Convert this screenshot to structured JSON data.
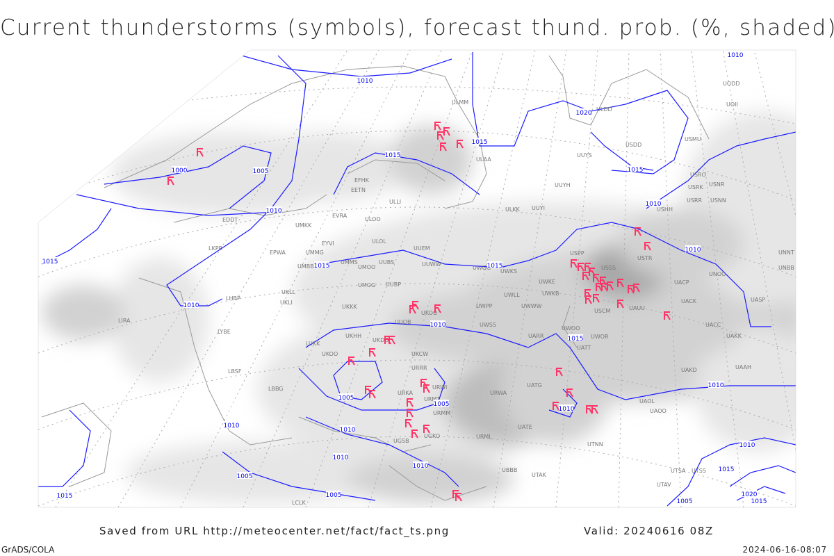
{
  "title": "Current thunderstorms (symbols), forecast thund. prob. (%, shaded)",
  "footer": {
    "saved_from": "Saved from URL http://meteocenter.net/fact/fact_ts.png",
    "valid": "Valid: 20240616 08Z",
    "software": "GrADS/COLA",
    "generated": "2024-06-16-08:07"
  },
  "colors": {
    "isobar": "#1a1aff",
    "thunderstorm_symbol": "#ff3366",
    "coastline": "#999999",
    "shading": [
      "#e6e6e6",
      "#d2d2d2",
      "#bdbdbd",
      "#a8a8a8"
    ]
  },
  "isobar_labels": [
    "1010",
    "1020",
    "1015",
    "1015",
    "1000",
    "1005",
    "1010",
    "1015",
    "1015",
    "1010",
    "1010",
    "1010",
    "1010",
    "1015",
    "1005",
    "1005",
    "1010",
    "1010",
    "1010",
    "1010",
    "1010",
    "1010",
    "1005",
    "1005",
    "1015",
    "1015",
    "1010",
    "1015",
    "1005",
    "1020",
    "1015",
    "1010",
    "1015"
  ],
  "stations": [
    "ULMM",
    "ULAA",
    "UUYS",
    "UUYH",
    "ULKK",
    "UUYI",
    "ULOO",
    "ULOL",
    "UUEM",
    "UUWW",
    "UUBS",
    "UUBP",
    "UMMS",
    "UMOO",
    "UMGG",
    "UKKK",
    "UKOO",
    "UWPP",
    "UWKS",
    "UWGG",
    "UWKE",
    "UWKB",
    "UWWW",
    "UWSS",
    "UWLL",
    "USPP",
    "USSS",
    "USCM",
    "UAUU",
    "USTR",
    "UACP",
    "UACK",
    "UACC",
    "UAKK",
    "UNOO",
    "UASP",
    "UNNT",
    "UNBB",
    "USHH",
    "USRR",
    "USRK",
    "USRO",
    "USNR",
    "USNN",
    "USMU",
    "USDD",
    "UODD",
    "UOII",
    "ULDD",
    "EFHK",
    "EETN",
    "ULLI",
    "EVRA",
    "EYVI",
    "UMKK",
    "EPWA",
    "UMMG",
    "UMBB",
    "UKLL",
    "UKLI",
    "LHBP",
    "LKPR",
    "EDDT",
    "LIRA",
    "LYBE",
    "LUKK",
    "UKHH",
    "UKDD",
    "UUOB",
    "UKCW",
    "UKOO",
    "LBSF",
    "LBBG",
    "URRR",
    "URKA",
    "URMT",
    "URMM",
    "URWI",
    "URWA",
    "UATG",
    "UATT",
    "UWOR",
    "UWOO",
    "UARR",
    "UATE",
    "URML",
    "UGSB",
    "UGKO",
    "UBBB",
    "UTAK",
    "UTNN",
    "UAOL",
    "UAOO",
    "UAKD",
    "UAAH",
    "UTSA",
    "UTSS",
    "UTAV",
    "LCLK"
  ]
}
